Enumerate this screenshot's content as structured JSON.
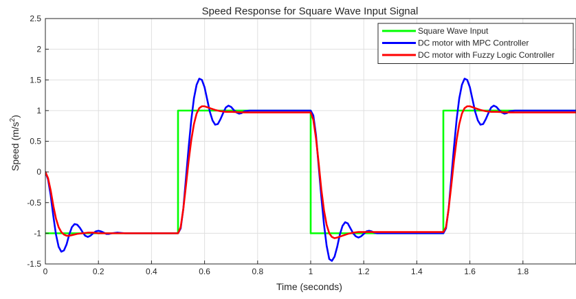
{
  "chart_data": {
    "type": "line",
    "title": "Speed Response for Square Wave Input Signal",
    "xlabel": "Time (seconds)",
    "ylabel_main": "Speed (m/s",
    "ylabel_sup": "2",
    "ylabel_close": ")",
    "xlim": [
      0,
      2
    ],
    "ylim": [
      -1.5,
      2.5
    ],
    "xticks": [
      0,
      0.2,
      0.4,
      0.6,
      0.8,
      1,
      1.2,
      1.4,
      1.6,
      1.8
    ],
    "xtick_labels": [
      "0",
      "0.2",
      "0.4",
      "0.6",
      "0.8",
      "1",
      "1.2",
      "1.4",
      "1.6",
      "1.8"
    ],
    "yticks": [
      -1.5,
      -1,
      -0.5,
      0,
      0.5,
      1,
      1.5,
      2,
      2.5
    ],
    "ytick_labels": [
      "-1.5",
      "-1",
      "-0.5",
      "0",
      "0.5",
      "1",
      "1.5",
      "2",
      "2.5"
    ],
    "grid": true,
    "legend_position": "top-right",
    "series": [
      {
        "name": "Square Wave Input",
        "color": "#00ff00",
        "x": [
          0,
          0.5,
          0.5,
          1.0,
          1.0,
          1.5,
          1.5,
          2.0
        ],
        "y": [
          -1,
          -1,
          1,
          1,
          -1,
          -1,
          1,
          1
        ]
      },
      {
        "name": "DC motor with MPC Controller",
        "color": "#0000ff",
        "x": [
          0,
          0.01,
          0.02,
          0.03,
          0.04,
          0.05,
          0.06,
          0.07,
          0.08,
          0.09,
          0.1,
          0.11,
          0.12,
          0.13,
          0.14,
          0.15,
          0.16,
          0.17,
          0.18,
          0.19,
          0.2,
          0.21,
          0.22,
          0.23,
          0.24,
          0.25,
          0.27,
          0.3,
          0.35,
          0.4,
          0.45,
          0.5,
          0.51,
          0.52,
          0.53,
          0.54,
          0.55,
          0.56,
          0.57,
          0.58,
          0.59,
          0.6,
          0.61,
          0.62,
          0.63,
          0.64,
          0.65,
          0.66,
          0.67,
          0.68,
          0.69,
          0.7,
          0.71,
          0.72,
          0.73,
          0.74,
          0.75,
          0.77,
          0.8,
          0.85,
          0.9,
          0.95,
          1.0,
          1.01,
          1.02,
          1.03,
          1.04,
          1.05,
          1.06,
          1.07,
          1.08,
          1.09,
          1.1,
          1.11,
          1.12,
          1.13,
          1.14,
          1.15,
          1.16,
          1.17,
          1.18,
          1.19,
          1.2,
          1.21,
          1.22,
          1.23,
          1.24,
          1.25,
          1.27,
          1.3,
          1.35,
          1.4,
          1.45,
          1.5,
          1.51,
          1.52,
          1.53,
          1.54,
          1.55,
          1.56,
          1.57,
          1.58,
          1.59,
          1.6,
          1.61,
          1.62,
          1.63,
          1.64,
          1.65,
          1.66,
          1.67,
          1.68,
          1.69,
          1.7,
          1.71,
          1.72,
          1.73,
          1.74,
          1.75,
          1.77,
          1.8,
          1.85,
          1.9,
          1.95,
          2.0
        ],
        "y": [
          0,
          -0.12,
          -0.38,
          -0.72,
          -1.02,
          -1.22,
          -1.3,
          -1.28,
          -1.18,
          -1.02,
          -0.9,
          -0.85,
          -0.86,
          -0.91,
          -0.98,
          -1.04,
          -1.06,
          -1.04,
          -1.0,
          -0.97,
          -0.96,
          -0.97,
          -0.99,
          -1.01,
          -1.01,
          -1.0,
          -0.99,
          -1.0,
          -1.0,
          -1.0,
          -1.0,
          -1.0,
          -0.92,
          -0.6,
          -0.1,
          0.4,
          0.85,
          1.2,
          1.42,
          1.52,
          1.5,
          1.38,
          1.18,
          0.98,
          0.84,
          0.77,
          0.78,
          0.86,
          0.96,
          1.05,
          1.08,
          1.06,
          1.01,
          0.97,
          0.95,
          0.96,
          0.99,
          1.0,
          1.0,
          1.0,
          1.0,
          1.0,
          1.0,
          0.92,
          0.6,
          0.1,
          -0.4,
          -0.85,
          -1.2,
          -1.42,
          -1.45,
          -1.38,
          -1.22,
          -1.02,
          -0.88,
          -0.82,
          -0.84,
          -0.92,
          -1.0,
          -1.05,
          -1.07,
          -1.05,
          -1.01,
          -0.97,
          -0.96,
          -0.97,
          -0.99,
          -1.0,
          -1.0,
          -1.0,
          -1.0,
          -1.0,
          -1.0,
          -1.0,
          -0.92,
          -0.6,
          -0.1,
          0.4,
          0.85,
          1.2,
          1.42,
          1.52,
          1.5,
          1.38,
          1.18,
          0.98,
          0.84,
          0.77,
          0.78,
          0.86,
          0.96,
          1.05,
          1.08,
          1.06,
          1.01,
          0.97,
          0.95,
          0.96,
          0.99,
          1.0,
          1.0,
          1.0,
          1.0,
          1.0,
          1.0
        ]
      },
      {
        "name": "DC motor with Fuzzy Logic Controller",
        "color": "#ff0000",
        "x": [
          0,
          0.01,
          0.02,
          0.03,
          0.04,
          0.05,
          0.06,
          0.07,
          0.08,
          0.09,
          0.1,
          0.12,
          0.14,
          0.16,
          0.18,
          0.2,
          0.25,
          0.3,
          0.4,
          0.5,
          0.51,
          0.52,
          0.53,
          0.54,
          0.55,
          0.56,
          0.57,
          0.58,
          0.59,
          0.6,
          0.62,
          0.64,
          0.66,
          0.68,
          0.7,
          0.75,
          0.8,
          0.9,
          1.0,
          1.01,
          1.02,
          1.03,
          1.04,
          1.05,
          1.06,
          1.07,
          1.08,
          1.09,
          1.1,
          1.12,
          1.14,
          1.16,
          1.18,
          1.2,
          1.25,
          1.3,
          1.4,
          1.5,
          1.51,
          1.52,
          1.53,
          1.54,
          1.55,
          1.56,
          1.57,
          1.58,
          1.59,
          1.6,
          1.62,
          1.64,
          1.66,
          1.68,
          1.7,
          1.75,
          1.8,
          1.9,
          2.0
        ],
        "y": [
          0,
          -0.1,
          -0.3,
          -0.55,
          -0.76,
          -0.9,
          -0.98,
          -1.02,
          -1.04,
          -1.04,
          -1.03,
          -1.01,
          -1.0,
          -0.99,
          -0.99,
          -1.0,
          -1.0,
          -1.0,
          -1.0,
          -1.0,
          -0.9,
          -0.6,
          -0.22,
          0.18,
          0.52,
          0.78,
          0.95,
          1.04,
          1.07,
          1.07,
          1.04,
          1.01,
          0.99,
          0.98,
          0.98,
          0.97,
          0.97,
          0.97,
          0.97,
          0.85,
          0.55,
          0.15,
          -0.28,
          -0.62,
          -0.86,
          -1.0,
          -1.06,
          -1.08,
          -1.07,
          -1.04,
          -1.01,
          -0.99,
          -0.98,
          -0.98,
          -0.98,
          -0.98,
          -0.98,
          -0.98,
          -0.9,
          -0.6,
          -0.22,
          0.18,
          0.52,
          0.78,
          0.95,
          1.04,
          1.07,
          1.07,
          1.04,
          1.01,
          0.99,
          0.98,
          0.98,
          0.97,
          0.97,
          0.97,
          0.97
        ]
      }
    ]
  }
}
